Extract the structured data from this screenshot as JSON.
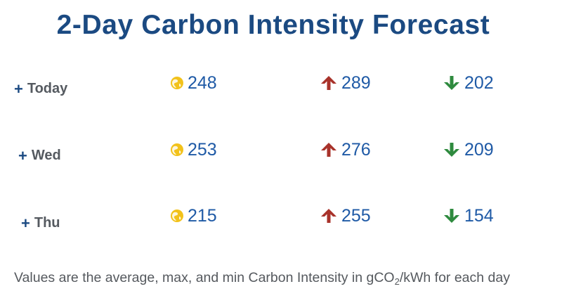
{
  "title": "2-Day Carbon Intensity Forecast",
  "rows": [
    {
      "day": "Today",
      "avg": "248",
      "max": "289",
      "min": "202"
    },
    {
      "day": "Wed",
      "avg": "253",
      "max": "276",
      "min": "209"
    },
    {
      "day": "Thu",
      "avg": "215",
      "max": "255",
      "min": "154"
    }
  ],
  "icons": {
    "avg": "globe-icon",
    "max": "arrow-up-icon",
    "min": "arrow-down-icon",
    "expand": "plus-icon"
  },
  "colors": {
    "title": "#1b4a82",
    "value": "#1f5aa6",
    "globe": "#f2c21b",
    "max_arrow": "#a8322a",
    "min_arrow": "#2e8a3e",
    "text": "#55595e"
  },
  "note": {
    "prefix": "Values are the average, max, and min Carbon Intensity in gCO",
    "subscript": "2",
    "suffix": "/kWh for each day"
  }
}
